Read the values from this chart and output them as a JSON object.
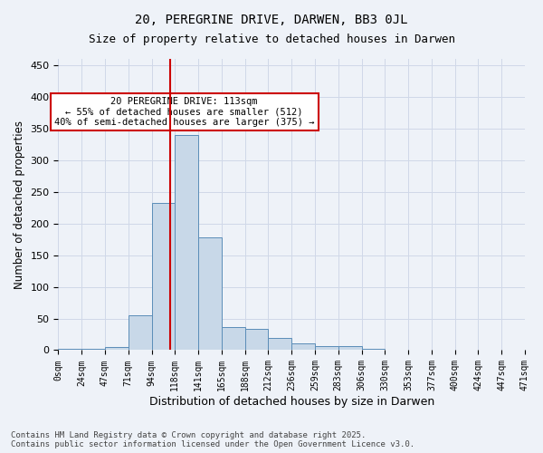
{
  "title1": "20, PEREGRINE DRIVE, DARWEN, BB3 0JL",
  "title2": "Size of property relative to detached houses in Darwen",
  "xlabel": "Distribution of detached houses by size in Darwen",
  "ylabel": "Number of detached properties",
  "bins": [
    "0sqm",
    "24sqm",
    "47sqm",
    "71sqm",
    "94sqm",
    "118sqm",
    "141sqm",
    "165sqm",
    "188sqm",
    "212sqm",
    "236sqm",
    "259sqm",
    "283sqm",
    "306sqm",
    "330sqm",
    "353sqm",
    "377sqm",
    "400sqm",
    "424sqm",
    "447sqm",
    "471sqm"
  ],
  "bar_values": [
    2,
    2,
    5,
    55,
    232,
    340,
    178,
    37,
    33,
    19,
    11,
    6,
    7,
    2,
    1,
    1,
    0,
    0,
    0,
    0
  ],
  "bar_color": "#c8d8e8",
  "bar_edge_color": "#5b8db8",
  "grid_color": "#d0d8e8",
  "background_color": "#eef2f8",
  "property_line_color": "#cc0000",
  "annotation_text": "20 PEREGRINE DRIVE: 113sqm\n← 55% of detached houses are smaller (512)\n40% of semi-detached houses are larger (375) →",
  "annotation_box_color": "#cc0000",
  "footer1": "Contains HM Land Registry data © Crown copyright and database right 2025.",
  "footer2": "Contains public sector information licensed under the Open Government Licence v3.0.",
  "ylim": [
    0,
    460
  ],
  "yticks": [
    0,
    50,
    100,
    150,
    200,
    250,
    300,
    350,
    400,
    450
  ]
}
